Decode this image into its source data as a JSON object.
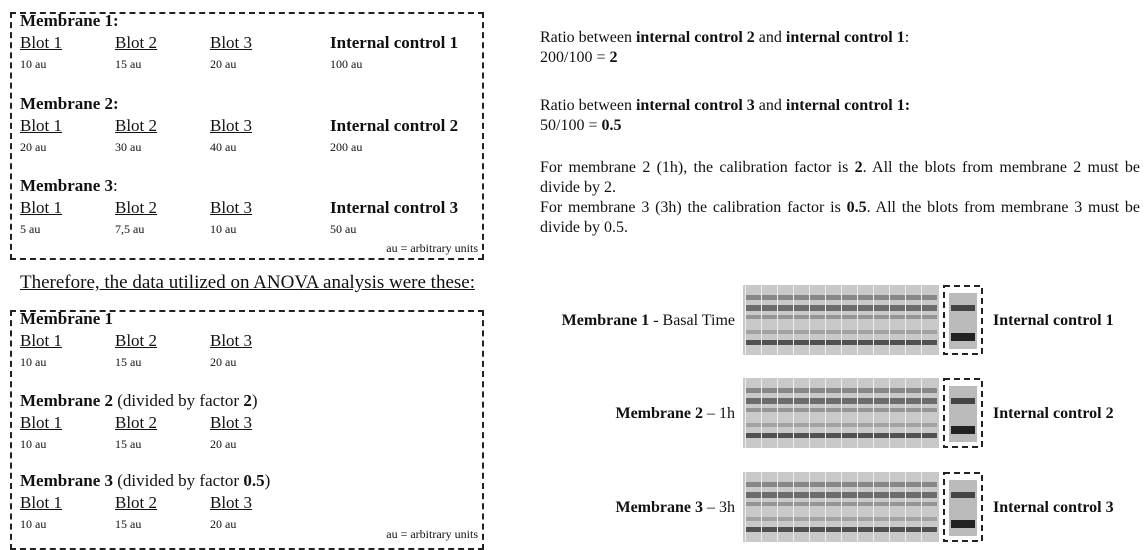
{
  "top_box": {
    "membranes": [
      {
        "title": [
          {
            "text": "Membrane 1:",
            "bold": true
          }
        ],
        "headers": [
          "Blot 1",
          "Blot 2",
          "Blot 3",
          "Internal control 1"
        ],
        "values": [
          "10 au",
          "15 au",
          "20 au",
          "100 au"
        ]
      },
      {
        "title": [
          {
            "text": "Membrane 2:",
            "bold": true
          }
        ],
        "headers": [
          "Blot 1",
          "Blot 2",
          "Blot 3",
          "Internal control 2"
        ],
        "values": [
          "20 au",
          "30 au",
          "40 au",
          "200 au"
        ]
      },
      {
        "title": [
          {
            "text": "Membrane 3",
            "bold": true
          },
          {
            "text": ":",
            "bold": false
          }
        ],
        "headers": [
          "Blot 1",
          "Blot 2",
          "Blot 3",
          "Internal control 3"
        ],
        "values": [
          "5 au",
          "7,5 au",
          "10 au",
          "50 au"
        ]
      }
    ],
    "note": "au = arbitrary units"
  },
  "therefore": "Therefore, the data utilized on ANOVA analysis were these:",
  "bottom_box": {
    "membranes": [
      {
        "title": [
          {
            "text": "Membrane 1",
            "bold": true
          }
        ],
        "headers": [
          "Blot 1",
          "Blot 2",
          "Blot 3"
        ],
        "values": [
          "10 au",
          "15 au",
          "20 au"
        ]
      },
      {
        "title": [
          {
            "text": "Membrane 2",
            "bold": true
          },
          {
            "text": " (divided by factor ",
            "bold": false
          },
          {
            "text": "2",
            "bold": true
          },
          {
            "text": ")",
            "bold": false
          }
        ],
        "headers": [
          "Blot 1",
          "Blot 2",
          "Blot 3"
        ],
        "values": [
          "10 au",
          "15 au",
          "20 au"
        ]
      },
      {
        "title": [
          {
            "text": "Membrane 3",
            "bold": true
          },
          {
            "text": " (divided by factor ",
            "bold": false
          },
          {
            "text": "0.5",
            "bold": true
          },
          {
            "text": ")",
            "bold": false
          }
        ],
        "headers": [
          "Blot 1",
          "Blot 2",
          "Blot 3"
        ],
        "values": [
          "10 au",
          "15 au",
          "20 au"
        ]
      }
    ],
    "note": "au = arbitrary units"
  },
  "explanation": {
    "paragraphs": [
      [
        {
          "text": "Ratio between ",
          "bold": false
        },
        {
          "text": "internal control 2",
          "bold": true
        },
        {
          "text": " and ",
          "bold": false
        },
        {
          "text": "internal control 1",
          "bold": true
        },
        {
          "text": ":",
          "bold": false
        }
      ],
      [
        {
          "text": "200/100 = ",
          "bold": false
        },
        {
          "text": "2",
          "bold": true
        }
      ],
      [
        {
          "text": "Ratio between ",
          "bold": false
        },
        {
          "text": "internal control 3",
          "bold": true
        },
        {
          "text": " and ",
          "bold": false
        },
        {
          "text": "internal control 1:",
          "bold": true
        }
      ],
      [
        {
          "text": "50/100 = ",
          "bold": false
        },
        {
          "text": "0.5",
          "bold": true
        }
      ],
      [
        {
          "text": "For membrane 2 (1h), the calibration factor is ",
          "bold": false
        },
        {
          "text": "2",
          "bold": true
        },
        {
          "text": ". All the blots from membrane 2 must be divide by 2.",
          "bold": false
        }
      ],
      [
        {
          "text": "For membrane 3 (3h) the calibration factor is ",
          "bold": false
        },
        {
          "text": "0.5",
          "bold": true
        },
        {
          "text": ". All the blots from membrane 3 must be divide by 0.5.",
          "bold": false
        }
      ]
    ]
  },
  "blots": {
    "rows": [
      {
        "label": [
          {
            "text": "Membrane 1",
            "bold": true
          },
          {
            "text": " - Basal Time",
            "bold": false
          }
        ],
        "control": "Internal control 1"
      },
      {
        "label": [
          {
            "text": "Membrane 2",
            "bold": true
          },
          {
            "text": " – 1h",
            "bold": false
          }
        ],
        "control": "Internal control 2"
      },
      {
        "label": [
          {
            "text": "Membrane 3",
            "bold": true
          },
          {
            "text": " – 3h",
            "bold": false
          }
        ],
        "control": "Internal control 3"
      }
    ]
  }
}
